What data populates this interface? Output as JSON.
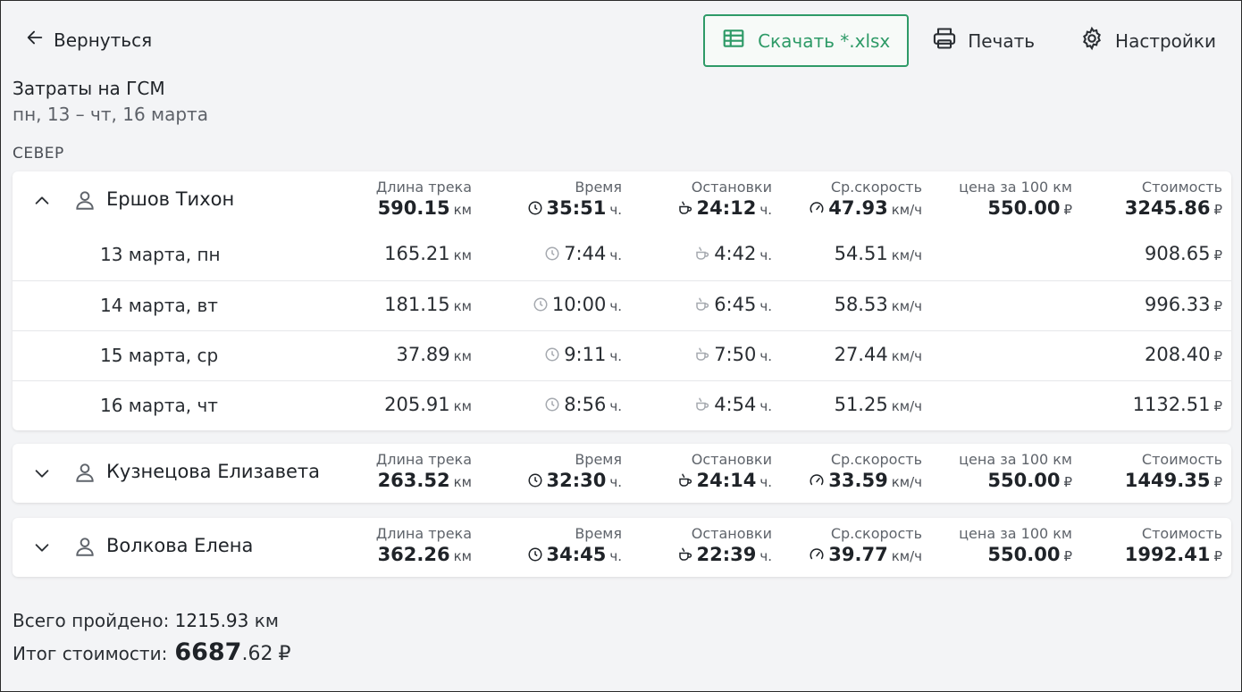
{
  "toolbar": {
    "back_label": "Вернуться",
    "download_label": "Скачать *.xlsx",
    "print_label": "Печать",
    "settings_label": "Настройки"
  },
  "report": {
    "title": "Затраты на ГСМ",
    "period": "пн, 13 – чт, 16 марта",
    "group": "СЕВЕР"
  },
  "labels": {
    "track": "Длина трека",
    "time": "Время",
    "stops": "Остановки",
    "speed": "Ср.скорость",
    "price": "цена за 100 км",
    "cost": "Стоимость",
    "unit_km": "км",
    "unit_h": "ч.",
    "unit_kmh": "км/ч",
    "currency": "₽"
  },
  "drivers": [
    {
      "name": "Ершов Тихон",
      "expanded": true,
      "track": "590.15",
      "time": "35:51",
      "stops": "24:12",
      "speed": "47.93",
      "price": "550.00",
      "cost": "3245.86",
      "days": [
        {
          "label": "13 марта, пн",
          "track": "165.21",
          "time": "7:44",
          "stops": "4:42",
          "speed": "54.51",
          "cost": "908.65"
        },
        {
          "label": "14 марта, вт",
          "track": "181.15",
          "time": "10:00",
          "stops": "6:45",
          "speed": "58.53",
          "cost": "996.33"
        },
        {
          "label": "15 марта, ср",
          "track": "37.89",
          "time": "9:11",
          "stops": "7:50",
          "speed": "27.44",
          "cost": "208.40"
        },
        {
          "label": "16 марта, чт",
          "track": "205.91",
          "time": "8:56",
          "stops": "4:54",
          "speed": "51.25",
          "cost": "1132.51"
        }
      ]
    },
    {
      "name": "Кузнецова Елизавета",
      "expanded": false,
      "track": "263.52",
      "time": "32:30",
      "stops": "24:14",
      "speed": "33.59",
      "price": "550.00",
      "cost": "1449.35"
    },
    {
      "name": "Волкова Елена",
      "expanded": false,
      "track": "362.26",
      "time": "34:45",
      "stops": "22:39",
      "speed": "39.77",
      "price": "550.00",
      "cost": "1992.41"
    }
  ],
  "summary": {
    "total_label": "Всего пройдено:",
    "total_value": "1215.93",
    "total_unit": "км",
    "cost_label": "Итог стоимости:",
    "cost_int": "6687",
    "cost_frac": ".62",
    "cost_currency": "₽"
  },
  "colors": {
    "accent": "#2e9a67",
    "background": "#f3f4f6",
    "card": "#ffffff"
  }
}
